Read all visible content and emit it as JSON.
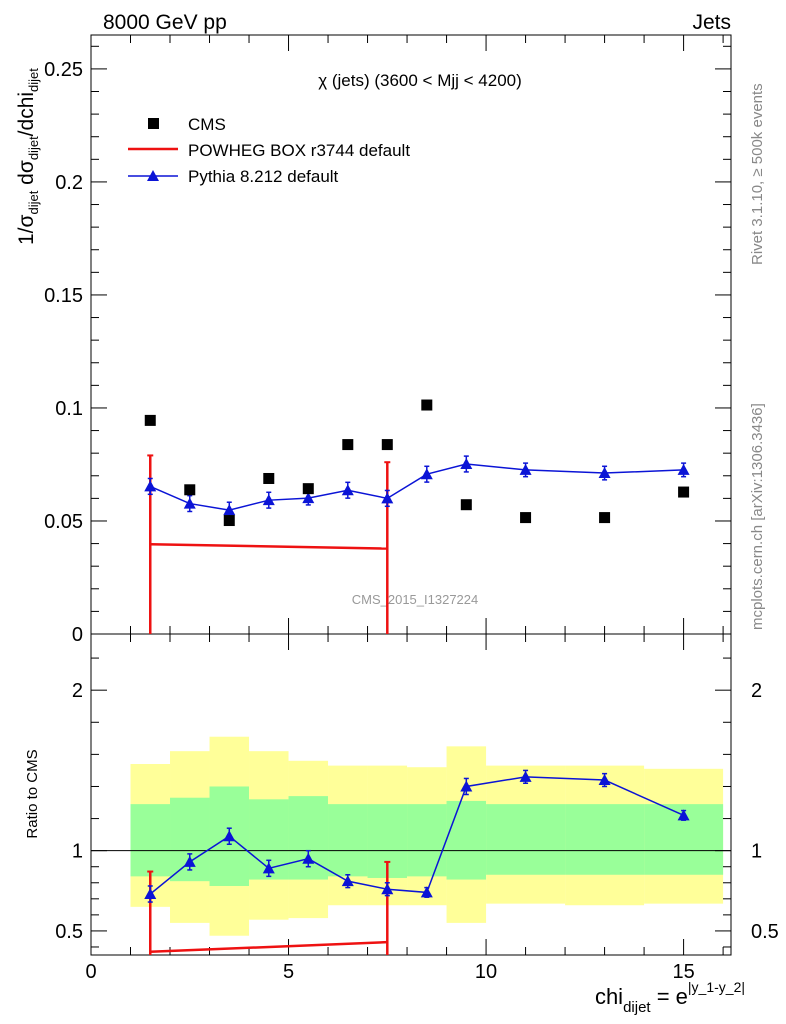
{
  "header": {
    "left": "8000 GeV pp",
    "right": "Jets"
  },
  "side_labels": {
    "rivet": "Rivet 3.1.10, ≥ 500k events",
    "mcplots": "mcplots.cern.ch [arXiv:1306.3436]"
  },
  "plot_title": "χ (jets) (3600 < Mjj < 4200)",
  "analysis_id": "CMS_2015_I1327224",
  "colors": {
    "cms": "#000000",
    "powheg": "#ee1111",
    "pythia": "#0b14d6",
    "band_outer": "#ffff99",
    "band_inner": "#99ff99"
  },
  "chart_data": [
    {
      "type": "scatter",
      "panel": "main",
      "ylabel_parts": {
        "a": "1/σ",
        "a_sub": "dijet",
        "b": " dσ",
        "b_sub": "dijet",
        "c": "/dchi",
        "c_sub": "dijet"
      },
      "xlim": [
        0,
        16.2
      ],
      "ylim": [
        0,
        0.265
      ],
      "yticks": [
        0,
        0.05,
        0.1,
        0.15,
        0.2,
        0.25
      ],
      "ytick_labels": [
        "0",
        "0.05",
        "0.1",
        "0.15",
        "0.2",
        "0.25"
      ],
      "legend": [
        "CMS",
        "POWHEG BOX r3744 default",
        "Pythia 8.212 default"
      ],
      "series": [
        {
          "name": "CMS",
          "marker": "square",
          "x": [
            1.5,
            2.5,
            3.5,
            4.5,
            5.5,
            6.5,
            7.5,
            8.5,
            9.5,
            11,
            13,
            15
          ],
          "y": [
            0.0945,
            0.0638,
            0.0502,
            0.0688,
            0.0643,
            0.0838,
            0.0838,
            0.1013,
            0.0572,
            0.0515,
            0.0515,
            0.0628
          ]
        },
        {
          "name": "POWHEG BOX r3744 default",
          "marker": "line",
          "x": [
            1.5,
            7.5
          ],
          "y": [
            0.0397,
            0.0378
          ],
          "err_low": [
            0.0397,
            0.0378
          ],
          "err_high": [
            0.0393,
            0.0382
          ]
        },
        {
          "name": "Pythia 8.212 default",
          "marker": "triangle",
          "x": [
            1.5,
            2.5,
            3.5,
            4.5,
            5.5,
            6.5,
            7.5,
            8.5,
            9.5,
            11,
            13,
            15
          ],
          "y": [
            0.0653,
            0.0577,
            0.0548,
            0.0592,
            0.0601,
            0.0636,
            0.06,
            0.0707,
            0.0752,
            0.0726,
            0.0712,
            0.0726
          ],
          "err": [
            0.0035,
            0.0035,
            0.0035,
            0.0035,
            0.003,
            0.0035,
            0.0035,
            0.0035,
            0.0035,
            0.003,
            0.003,
            0.003
          ]
        }
      ]
    },
    {
      "type": "scatter",
      "panel": "ratio",
      "ylabel": "Ratio to CMS",
      "xlabel_parts": {
        "base": "chi",
        "sub": "dijet",
        "eq": " = e",
        "sup": "|y_1-y_2|"
      },
      "xlim": [
        0,
        16.2
      ],
      "ylim": [
        0.35,
        2.35
      ],
      "yticks": [
        0.5,
        1,
        2
      ],
      "ytick_labels": [
        "0.5",
        "1",
        "2"
      ],
      "xticks": [
        0,
        5,
        10,
        15
      ],
      "xtick_labels": [
        "0",
        "5",
        "10",
        "15"
      ],
      "bands": {
        "edges": [
          1,
          2,
          3,
          4,
          5,
          6,
          7,
          8,
          9,
          10,
          12,
          14,
          16
        ],
        "outer_low": [
          0.65,
          0.55,
          0.47,
          0.57,
          0.58,
          0.66,
          0.66,
          0.66,
          0.55,
          0.67,
          0.66,
          0.67
        ],
        "outer_high": [
          1.54,
          1.62,
          1.71,
          1.62,
          1.56,
          1.53,
          1.53,
          1.52,
          1.65,
          1.53,
          1.53,
          1.51
        ],
        "inner_low": [
          0.84,
          0.81,
          0.78,
          0.82,
          0.82,
          0.84,
          0.83,
          0.84,
          0.82,
          0.85,
          0.85,
          0.85
        ],
        "inner_high": [
          1.29,
          1.33,
          1.4,
          1.32,
          1.34,
          1.29,
          1.29,
          1.29,
          1.31,
          1.29,
          1.29,
          1.29
        ]
      },
      "series": [
        {
          "name": "POWHEG BOX r3744 default",
          "x": [
            1.5,
            7.5
          ],
          "y": [
            0.37,
            0.43
          ],
          "err_high": [
            0.87,
            0.93
          ]
        },
        {
          "name": "Pythia 8.212 default",
          "x": [
            1.5,
            2.5,
            3.5,
            4.5,
            5.5,
            6.5,
            7.5,
            8.5,
            9.5,
            11,
            13,
            15
          ],
          "y": [
            0.73,
            0.93,
            1.09,
            0.89,
            0.95,
            0.81,
            0.76,
            0.74,
            1.4,
            1.46,
            1.44,
            1.22
          ],
          "err": [
            0.05,
            0.05,
            0.05,
            0.05,
            0.05,
            0.04,
            0.04,
            0.03,
            0.05,
            0.04,
            0.04,
            0.03
          ]
        }
      ]
    }
  ]
}
